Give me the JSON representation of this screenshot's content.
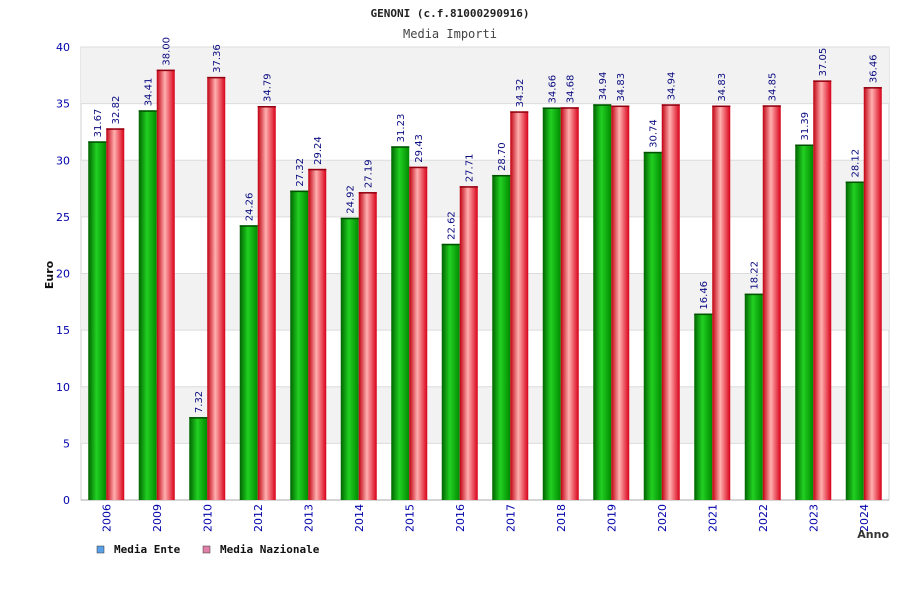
{
  "chart_data": {
    "type": "bar",
    "title": "GENONI (c.f.81000290916)",
    "subtitle": "Media Importi",
    "xlabel": "Anno",
    "ylabel": "Euro",
    "ylim": [
      0,
      40
    ],
    "yticks": [
      "0",
      "5",
      "10",
      "15",
      "20",
      "25",
      "30",
      "35",
      "40"
    ],
    "categories": [
      "2006",
      "2009",
      "2010",
      "2012",
      "2013",
      "2014",
      "2015",
      "2016",
      "2017",
      "2018",
      "2019",
      "2020",
      "2021",
      "2022",
      "2023",
      "2024"
    ],
    "series": [
      {
        "name": "Media Ente",
        "values": [
          31.67,
          34.41,
          7.32,
          24.26,
          27.32,
          24.92,
          31.23,
          22.62,
          28.7,
          34.66,
          34.94,
          30.74,
          16.46,
          18.22,
          31.39,
          28.12
        ],
        "labels": [
          "31.67",
          "34.41",
          "7.32",
          "24.26",
          "27.32",
          "24.92",
          "31.23",
          "22.62",
          "28.70",
          "34.66",
          "34.94",
          "30.74",
          "16.46",
          "18.22",
          "31.39",
          "28.12"
        ]
      },
      {
        "name": "Media Nazionale",
        "values": [
          32.82,
          38.0,
          37.36,
          34.79,
          29.24,
          27.19,
          29.43,
          27.71,
          34.32,
          34.68,
          34.83,
          34.94,
          34.83,
          34.85,
          37.05,
          36.46
        ],
        "labels": [
          "32.82",
          "38.00",
          "37.36",
          "34.79",
          "29.24",
          "27.19",
          "29.43",
          "27.71",
          "34.32",
          "34.68",
          "34.83",
          "34.94",
          "34.83",
          "34.85",
          "37.05",
          "36.46"
        ]
      }
    ],
    "grid": true,
    "legend_position": "bottom-left"
  },
  "colors": {
    "ente": "#00b000",
    "nazionale": "#e01020",
    "legend_ente": "#5aa0e8",
    "legend_nazionale": "#e080a8",
    "tick_text": "#0000aa",
    "value_text": "#0a0a80",
    "band": "#f2f2f2"
  }
}
